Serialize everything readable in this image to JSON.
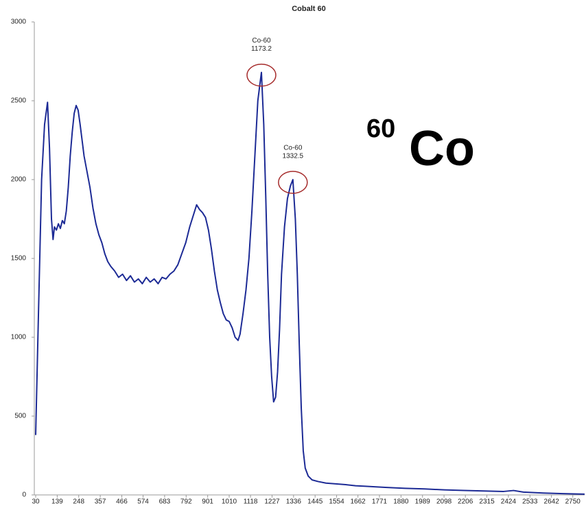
{
  "chart_data": {
    "type": "line",
    "title": "Cobalt 60",
    "color": "#1c2a95",
    "x": [
      30,
      45,
      60,
      75,
      90,
      100,
      110,
      118,
      125,
      135,
      145,
      155,
      165,
      175,
      185,
      195,
      205,
      215,
      225,
      235,
      245,
      255,
      265,
      275,
      290,
      305,
      320,
      335,
      350,
      365,
      380,
      395,
      410,
      430,
      450,
      470,
      490,
      510,
      530,
      550,
      570,
      590,
      610,
      630,
      650,
      670,
      690,
      710,
      730,
      750,
      770,
      790,
      810,
      830,
      845,
      860,
      875,
      890,
      905,
      920,
      935,
      950,
      965,
      980,
      995,
      1010,
      1025,
      1040,
      1055,
      1065,
      1080,
      1095,
      1110,
      1125,
      1140,
      1155,
      1165,
      1173.2,
      1185,
      1195,
      1205,
      1215,
      1225,
      1235,
      1245,
      1255,
      1265,
      1275,
      1290,
      1305,
      1320,
      1332.5,
      1345,
      1355,
      1365,
      1375,
      1385,
      1395,
      1410,
      1430,
      1460,
      1500,
      1550,
      1600,
      1650,
      1700,
      1800,
      1900,
      2000,
      2100,
      2200,
      2300,
      2400,
      2450,
      2500,
      2600,
      2700,
      2810
    ],
    "values": [
      380,
      1200,
      2000,
      2350,
      2490,
      2200,
      1750,
      1620,
      1700,
      1680,
      1720,
      1690,
      1740,
      1720,
      1800,
      1950,
      2150,
      2300,
      2420,
      2470,
      2440,
      2350,
      2250,
      2150,
      2050,
      1950,
      1820,
      1720,
      1650,
      1600,
      1530,
      1480,
      1450,
      1420,
      1380,
      1400,
      1360,
      1390,
      1350,
      1370,
      1340,
      1380,
      1350,
      1370,
      1340,
      1380,
      1370,
      1400,
      1420,
      1460,
      1530,
      1600,
      1700,
      1780,
      1840,
      1810,
      1790,
      1760,
      1680,
      1560,
      1420,
      1300,
      1220,
      1150,
      1110,
      1100,
      1060,
      1000,
      980,
      1020,
      1150,
      1300,
      1500,
      1800,
      2150,
      2500,
      2600,
      2680,
      2350,
      1900,
      1400,
      1000,
      750,
      590,
      620,
      780,
      1050,
      1400,
      1700,
      1880,
      1960,
      2000,
      1750,
      1400,
      950,
      550,
      280,
      170,
      120,
      95,
      85,
      75,
      70,
      65,
      58,
      55,
      48,
      42,
      38,
      32,
      28,
      25,
      22,
      28,
      18,
      12,
      8,
      5
    ],
    "xlim": [
      30,
      2810
    ],
    "ylim": [
      0,
      3000
    ],
    "xticks": [
      30,
      139,
      248,
      357,
      466,
      574,
      683,
      792,
      901,
      1010,
      1118,
      1227,
      1336,
      1445,
      1554,
      1662,
      1771,
      1880,
      1989,
      2098,
      2206,
      2315,
      2424,
      2533,
      2642,
      2750
    ],
    "yticks": [
      0,
      500,
      1000,
      1500,
      2000,
      2500,
      3000
    ],
    "annotations": [
      {
        "label": "Co-60",
        "x": 1173.2,
        "y": 2680
      },
      {
        "label": "Co-60",
        "x": 1332.5,
        "y": 2000
      }
    ],
    "isotope_label": {
      "mass": "60",
      "symbol": "Co"
    }
  }
}
